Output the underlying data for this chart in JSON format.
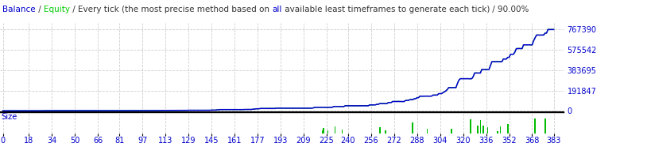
{
  "title_parts": [
    {
      "text": "Balance",
      "color": "#0000cc"
    },
    {
      "text": " / ",
      "color": "#333333"
    },
    {
      "text": "Equity",
      "color": "#00cc00"
    },
    {
      "text": " / Every tick (the most precise method based on ",
      "color": "#333333"
    },
    {
      "text": "all",
      "color": "#0000cc"
    },
    {
      "text": " available least timeframes to generate each tick)",
      "color": "#333333"
    },
    {
      "text": " / 90.00%",
      "color": "#333333"
    }
  ],
  "bg_color": "#ffffff",
  "plot_bg_color": "#ffffff",
  "grid_color": "#c8c8c8",
  "main_line_color": "#0000cc",
  "equity_line_color": "#00bb00",
  "bar_color": "#00bb00",
  "x_ticks": [
    0,
    18,
    34,
    50,
    66,
    81,
    97,
    113,
    129,
    145,
    161,
    177,
    193,
    209,
    225,
    240,
    256,
    272,
    288,
    304,
    320,
    336,
    352,
    368,
    383
  ],
  "y_ticks_main": [
    0,
    191847,
    383695,
    575542,
    767390
  ],
  "y_labels_main": [
    "0",
    "191847",
    "383695",
    "575542",
    "767390"
  ],
  "xlim": [
    -2,
    390
  ],
  "ylim_main": [
    -15000,
    830000
  ],
  "ylim_size": [
    0,
    1
  ],
  "n_points": 384,
  "size_label": "Size",
  "title_fontsize": 7.5,
  "tick_fontsize": 7.0,
  "size_tick_fontsize": 7.0
}
